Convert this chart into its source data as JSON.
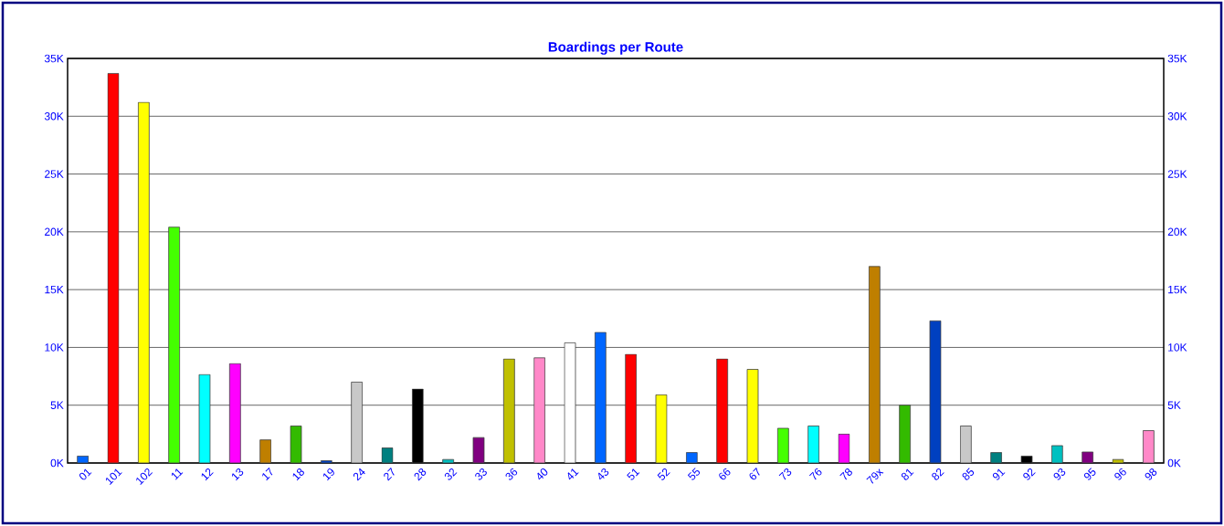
{
  "chart_data": {
    "type": "bar",
    "title": "Boardings per Route",
    "categories": [
      "01",
      "101",
      "102",
      "11",
      "12",
      "13",
      "17",
      "18",
      "19",
      "24",
      "27",
      "28",
      "32",
      "33",
      "36",
      "40",
      "41",
      "43",
      "51",
      "52",
      "55",
      "66",
      "67",
      "73",
      "76",
      "78",
      "79x",
      "81",
      "82",
      "85",
      "91",
      "92",
      "93",
      "95",
      "96",
      "98"
    ],
    "values": [
      600,
      33700,
      31200,
      20400,
      7650,
      8600,
      2000,
      3200,
      200,
      7000,
      1300,
      6400,
      300,
      2200,
      9000,
      9100,
      10400,
      11300,
      9400,
      5900,
      900,
      9000,
      8100,
      3000,
      3200,
      2500,
      17000,
      5000,
      12300,
      3200,
      900,
      600,
      1500,
      950,
      300,
      2800
    ],
    "colors": [
      "#0066ff",
      "#ff0000",
      "#ffff00",
      "#44ff00",
      "#00ffff",
      "#ff00ff",
      "#bf7f00",
      "#33bb00",
      "#0040c0",
      "#c8c8c8",
      "#008080",
      "#000000",
      "#00c0c0",
      "#800080",
      "#c0c000",
      "#ff88c8",
      "#ffffff",
      "#0066ff",
      "#ff0000",
      "#ffff00",
      "#0066ff",
      "#ff0000",
      "#ffff00",
      "#44ff00",
      "#00ffff",
      "#ff00ff",
      "#bf7f00",
      "#33bb00",
      "#0040c0",
      "#c8c8c8",
      "#008080",
      "#000000",
      "#00c0c0",
      "#800080",
      "#c0c000",
      "#ff88c8"
    ],
    "ylim": [
      0,
      35000
    ],
    "yticks": [
      {
        "value": 0,
        "label": "0K"
      },
      {
        "value": 5000,
        "label": "5K"
      },
      {
        "value": 10000,
        "label": "10K"
      },
      {
        "value": 15000,
        "label": "15K"
      },
      {
        "value": 20000,
        "label": "20K"
      },
      {
        "value": 25000,
        "label": "25K"
      },
      {
        "value": 30000,
        "label": "30K"
      },
      {
        "value": 35000,
        "label": "35K"
      }
    ],
    "y2lim": [
      0,
      35000
    ],
    "y2ticks": [
      {
        "value": 0,
        "label": "0K"
      },
      {
        "value": 5000,
        "label": "5K"
      },
      {
        "value": 10000,
        "label": "10K"
      },
      {
        "value": 15000,
        "label": "15K"
      },
      {
        "value": 20000,
        "label": "20K"
      },
      {
        "value": 25000,
        "label": "25K"
      },
      {
        "value": 30000,
        "label": "30K"
      },
      {
        "value": 35000,
        "label": "35K"
      }
    ],
    "grid": "y"
  }
}
